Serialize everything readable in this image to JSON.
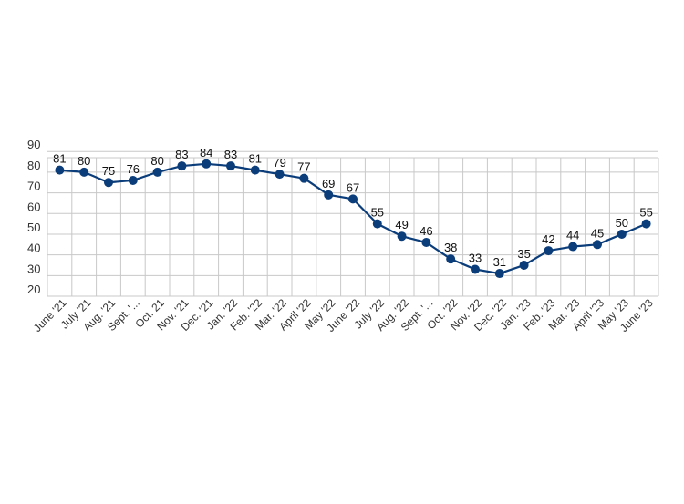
{
  "chart_data": {
    "type": "line",
    "title": "",
    "xlabel": "",
    "ylabel": "",
    "ylim": [
      20,
      90
    ],
    "yticks": [
      20,
      30,
      40,
      50,
      60,
      70,
      80,
      90
    ],
    "grid": true,
    "legend": "none",
    "line_color": "#0b3d7a",
    "categories": [
      "June '21",
      "July '21",
      "Aug. '21",
      "Sept. '...",
      "Oct. 21",
      "Nov. '21",
      "Dec. '21",
      "Jan. '22",
      "Feb. '22",
      "Mar. '22",
      "April '22",
      "May '22",
      "June '22",
      "July '22",
      "Aug. '22",
      "Sept. '...",
      "Oct. '22",
      "Nov. '22",
      "Dec. '22",
      "Jan. '23",
      "Feb. '23",
      "Mar. '23",
      "April '23",
      "May '23",
      "June '23"
    ],
    "series": [
      {
        "values": [
          81,
          80,
          75,
          76,
          80,
          83,
          84,
          83,
          81,
          79,
          77,
          69,
          67,
          55,
          49,
          46,
          38,
          33,
          31,
          35,
          42,
          44,
          45,
          50,
          55
        ]
      }
    ]
  }
}
